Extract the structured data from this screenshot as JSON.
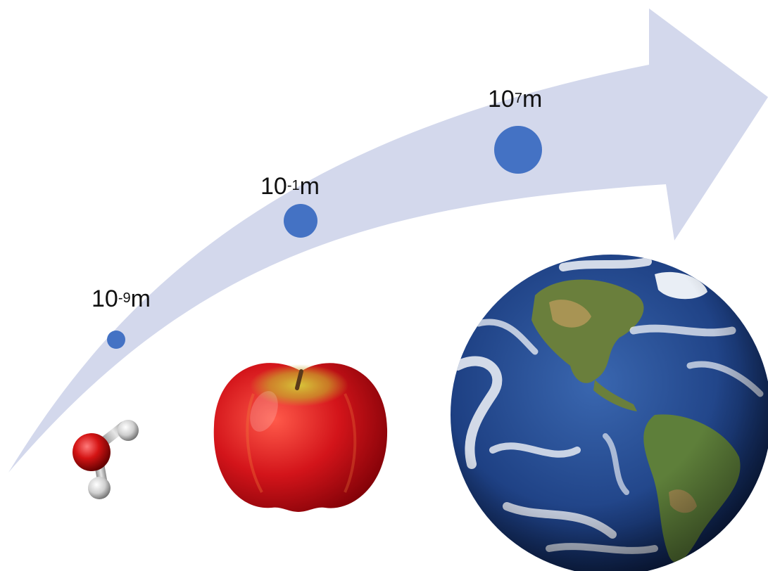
{
  "scale_markers": [
    {
      "base": "10",
      "exponent": "-9",
      "unit": "m",
      "object": "water molecule"
    },
    {
      "base": "10",
      "exponent": "-1",
      "unit": "m",
      "object": "apple"
    },
    {
      "base": "10",
      "exponent": "7",
      "unit": "m",
      "object": "earth"
    }
  ],
  "colors": {
    "arrow": "#d3d8ec",
    "dot": "#4472c4",
    "oxygen": "#cc1111",
    "hydrogen": "#d9d9d9",
    "apple": "#d4161a",
    "ocean": "#1d3f82",
    "land": "#5e7f3a",
    "cloud": "#ffffff"
  }
}
